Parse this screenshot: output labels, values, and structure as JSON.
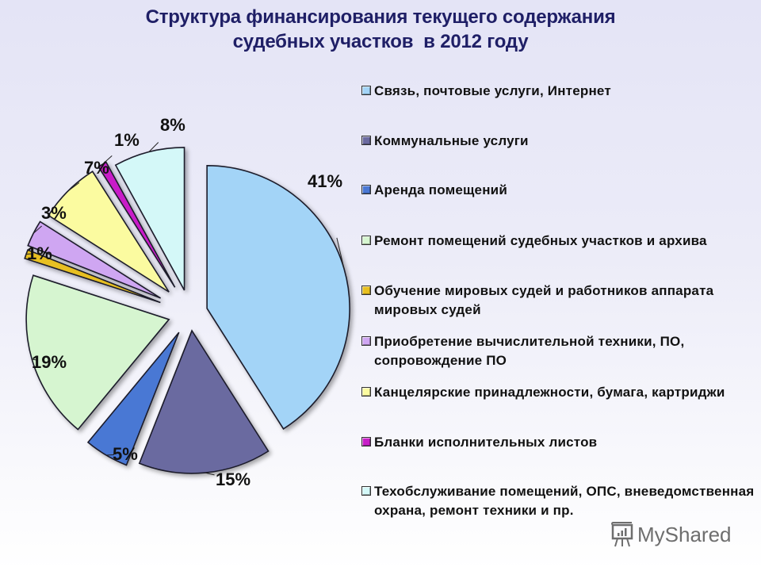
{
  "title": {
    "line1": "Структура финансирования текущего содержания",
    "line2": "судебных участков  в 2012 году"
  },
  "chart_data": {
    "type": "pie",
    "title": "Структура финансирования текущего содержания судебных участков в 2012 году",
    "exploded": true,
    "start_angle_deg": 0,
    "direction": "clockwise",
    "legend_position": "right",
    "categories": [
      "Связь, почтовые услуги, Интернет",
      "Коммунальные услуги",
      "Аренда помещений",
      "Ремонт помещений судебных участков и архива",
      "Обучение мировых судей и работников аппарата мировых судей",
      "Приобретение вычислительной техники, ПО, сопровождение ПО",
      "Канцелярские принадлежности, бумага, картриджи",
      "Бланки исполнительных листов",
      "Техобслуживание помещений, ОПС, вневедомственная охрана, ремонт техники и пр."
    ],
    "values": [
      41,
      15,
      5,
      19,
      1,
      3,
      7,
      1,
      8
    ],
    "unit": "%",
    "labels": [
      "41%",
      "15%",
      "5%",
      "19%",
      "1%",
      "3%",
      "7%",
      "1%",
      "8%"
    ],
    "colors": [
      "#a3d4f7",
      "#6b6aa0",
      "#4a78d4",
      "#d6f5d0",
      "#e8c020",
      "#cfa6f2",
      "#fbfba0",
      "#c81ec8",
      "#d4f8f8"
    ]
  },
  "legend": {
    "items": [
      {
        "label": "Связь, почтовые услуги, Интернет",
        "color": "#a3d4f7"
      },
      {
        "label": "Коммунальные услуги",
        "color": "#6b6aa0"
      },
      {
        "label": "Аренда помещений",
        "color": "#4a78d4"
      },
      {
        "label": "Ремонт помещений судебных участков и архива",
        "color": "#d6f5d0"
      },
      {
        "label": "Обучение мировых судей и работников аппарата мировых судей",
        "color": "#e8c020"
      },
      {
        "label": "Приобретение вычислительной техники, ПО, сопровождение ПО",
        "color": "#cfa6f2"
      },
      {
        "label": "Канцелярские принадлежности, бумага, картриджи",
        "color": "#fbfba0"
      },
      {
        "label": "Бланки исполнительных листов",
        "color": "#c81ec8"
      },
      {
        "label": "Техобслуживание помещений, ОПС, вневедомственная охрана, ремонт техники и пр.",
        "color": "#d4f8f8"
      }
    ]
  },
  "watermark": {
    "text": "MyShared"
  }
}
